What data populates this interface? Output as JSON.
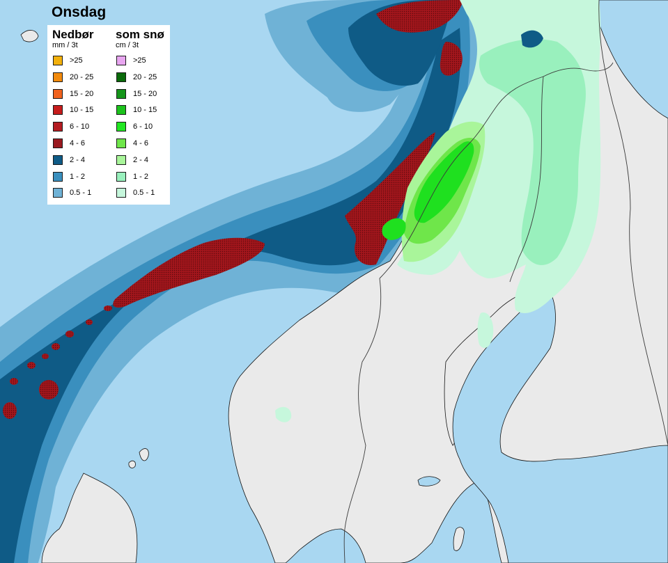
{
  "title": "Onsdag",
  "colors": {
    "sea": "#a9d7f1",
    "land": "#eaeaea",
    "border": "#3a3a3a",
    "coast": "#111111",
    "rain_0_5_1": "#6fb2d6",
    "rain_1_2": "#3a8fbe",
    "rain_2_4": "#0f5b86",
    "rain_4_6": "#b0141a",
    "snow_0_5_1": "#c6f7dc",
    "snow_1_2": "#99f0bd",
    "snow_2_4": "#a9f59a",
    "snow_4_6": "#6fe64a",
    "snow_6_10": "#1fe01f"
  },
  "legend": {
    "precip": {
      "title": "Nedbør",
      "unit": "mm / 3t",
      "items": [
        {
          "label": ">25",
          "color": "#f2b00c"
        },
        {
          "label": "20 - 25",
          "color": "#f28a0c"
        },
        {
          "label": "15 - 20",
          "color": "#f0621e"
        },
        {
          "label": "10 - 15",
          "color": "#c61c1c"
        },
        {
          "label": "6 - 10",
          "color": "#b41c22"
        },
        {
          "label": "4 - 6",
          "color": "#9a1a20"
        },
        {
          "label": "2 - 4",
          "color": "#0f5b86"
        },
        {
          "label": "1 - 2",
          "color": "#3a8fbe"
        },
        {
          "label": "0.5 - 1",
          "color": "#6fb2d6"
        }
      ]
    },
    "snow": {
      "title": "som snø",
      "unit": "cm / 3t",
      "items": [
        {
          "label": ">25",
          "color": "#e8a6f0"
        },
        {
          "label": "20 - 25",
          "color": "#0a6a0a"
        },
        {
          "label": "15 - 20",
          "color": "#15951a"
        },
        {
          "label": "10 - 15",
          "color": "#1cc21c"
        },
        {
          "label": "6 - 10",
          "color": "#22e622"
        },
        {
          "label": "4 - 6",
          "color": "#6fe64a"
        },
        {
          "label": "2 - 4",
          "color": "#a9f59a"
        },
        {
          "label": "1 - 2",
          "color": "#99f0bd"
        },
        {
          "label": "0.5 - 1",
          "color": "#c6f7dc"
        }
      ]
    }
  }
}
